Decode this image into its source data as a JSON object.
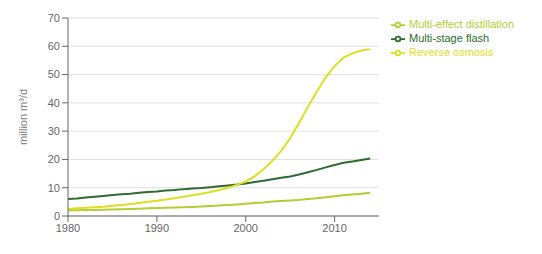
{
  "chart_data": {
    "type": "line",
    "ylabel": "million m³/d",
    "x": [
      1980,
      1981,
      1982,
      1983,
      1984,
      1985,
      1986,
      1987,
      1988,
      1989,
      1990,
      1991,
      1992,
      1993,
      1994,
      1995,
      1996,
      1997,
      1998,
      1999,
      2000,
      2001,
      2002,
      2003,
      2004,
      2005,
      2006,
      2007,
      2008,
      2009,
      2010,
      2011,
      2012,
      2013,
      2014
    ],
    "series": [
      {
        "name": "Multi-effect distillation",
        "color": "#b5cc35",
        "values": [
          2.0,
          2.05,
          2.1,
          2.15,
          2.2,
          2.3,
          2.4,
          2.5,
          2.6,
          2.7,
          2.8,
          2.9,
          3.0,
          3.1,
          3.2,
          3.35,
          3.5,
          3.7,
          3.9,
          4.1,
          4.3,
          4.6,
          4.8,
          5.1,
          5.3,
          5.5,
          5.7,
          6.0,
          6.3,
          6.6,
          7.0,
          7.3,
          7.6,
          7.9,
          8.2
        ]
      },
      {
        "name": "Multi-stage flash",
        "color": "#2d6b2e",
        "values": [
          6.0,
          6.2,
          6.5,
          6.8,
          7.1,
          7.4,
          7.7,
          7.9,
          8.2,
          8.5,
          8.7,
          9.0,
          9.2,
          9.5,
          9.7,
          9.9,
          10.2,
          10.5,
          10.8,
          11.1,
          11.5,
          12.0,
          12.5,
          13.0,
          13.5,
          14.0,
          14.7,
          15.5,
          16.3,
          17.2,
          18.0,
          18.8,
          19.3,
          19.8,
          20.3
        ]
      },
      {
        "name": "Reverse osmosis",
        "color": "#dde020",
        "values": [
          2.5,
          2.7,
          2.9,
          3.1,
          3.3,
          3.6,
          3.9,
          4.2,
          4.6,
          5.0,
          5.4,
          5.8,
          6.3,
          6.8,
          7.3,
          7.9,
          8.5,
          9.2,
          10.0,
          11.0,
          12.2,
          14.0,
          16.5,
          19.5,
          23.0,
          27.5,
          33.0,
          38.5,
          44.0,
          49.0,
          53.0,
          56.0,
          57.5,
          58.5,
          59.0
        ]
      }
    ],
    "xlim": [
      1980,
      2015
    ],
    "ylim": [
      0,
      70
    ],
    "xticks": [
      1980,
      1990,
      2000,
      2010
    ],
    "yticks": [
      0,
      10,
      20,
      30,
      40,
      50,
      60,
      70
    ],
    "grid": "y",
    "legend": "right"
  }
}
